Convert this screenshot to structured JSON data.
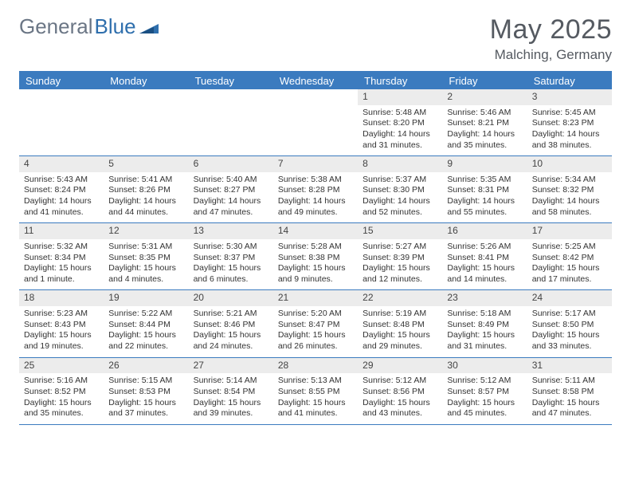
{
  "logo": {
    "text1": "General",
    "text2": "Blue"
  },
  "title": "May 2025",
  "location": "Malching, Germany",
  "colors": {
    "header_bg": "#3b7bbf",
    "header_text": "#ffffff",
    "daynum_bg": "#ececec",
    "border": "#3b7bbf",
    "logo_gray": "#6b7685",
    "logo_blue": "#2f6fad",
    "title_color": "#555a61"
  },
  "day_names": [
    "Sunday",
    "Monday",
    "Tuesday",
    "Wednesday",
    "Thursday",
    "Friday",
    "Saturday"
  ],
  "weeks": [
    [
      null,
      null,
      null,
      null,
      {
        "n": "1",
        "sr": "Sunrise: 5:48 AM",
        "ss": "Sunset: 8:20 PM",
        "d1": "Daylight: 14 hours",
        "d2": "and 31 minutes."
      },
      {
        "n": "2",
        "sr": "Sunrise: 5:46 AM",
        "ss": "Sunset: 8:21 PM",
        "d1": "Daylight: 14 hours",
        "d2": "and 35 minutes."
      },
      {
        "n": "3",
        "sr": "Sunrise: 5:45 AM",
        "ss": "Sunset: 8:23 PM",
        "d1": "Daylight: 14 hours",
        "d2": "and 38 minutes."
      }
    ],
    [
      {
        "n": "4",
        "sr": "Sunrise: 5:43 AM",
        "ss": "Sunset: 8:24 PM",
        "d1": "Daylight: 14 hours",
        "d2": "and 41 minutes."
      },
      {
        "n": "5",
        "sr": "Sunrise: 5:41 AM",
        "ss": "Sunset: 8:26 PM",
        "d1": "Daylight: 14 hours",
        "d2": "and 44 minutes."
      },
      {
        "n": "6",
        "sr": "Sunrise: 5:40 AM",
        "ss": "Sunset: 8:27 PM",
        "d1": "Daylight: 14 hours",
        "d2": "and 47 minutes."
      },
      {
        "n": "7",
        "sr": "Sunrise: 5:38 AM",
        "ss": "Sunset: 8:28 PM",
        "d1": "Daylight: 14 hours",
        "d2": "and 49 minutes."
      },
      {
        "n": "8",
        "sr": "Sunrise: 5:37 AM",
        "ss": "Sunset: 8:30 PM",
        "d1": "Daylight: 14 hours",
        "d2": "and 52 minutes."
      },
      {
        "n": "9",
        "sr": "Sunrise: 5:35 AM",
        "ss": "Sunset: 8:31 PM",
        "d1": "Daylight: 14 hours",
        "d2": "and 55 minutes."
      },
      {
        "n": "10",
        "sr": "Sunrise: 5:34 AM",
        "ss": "Sunset: 8:32 PM",
        "d1": "Daylight: 14 hours",
        "d2": "and 58 minutes."
      }
    ],
    [
      {
        "n": "11",
        "sr": "Sunrise: 5:32 AM",
        "ss": "Sunset: 8:34 PM",
        "d1": "Daylight: 15 hours",
        "d2": "and 1 minute."
      },
      {
        "n": "12",
        "sr": "Sunrise: 5:31 AM",
        "ss": "Sunset: 8:35 PM",
        "d1": "Daylight: 15 hours",
        "d2": "and 4 minutes."
      },
      {
        "n": "13",
        "sr": "Sunrise: 5:30 AM",
        "ss": "Sunset: 8:37 PM",
        "d1": "Daylight: 15 hours",
        "d2": "and 6 minutes."
      },
      {
        "n": "14",
        "sr": "Sunrise: 5:28 AM",
        "ss": "Sunset: 8:38 PM",
        "d1": "Daylight: 15 hours",
        "d2": "and 9 minutes."
      },
      {
        "n": "15",
        "sr": "Sunrise: 5:27 AM",
        "ss": "Sunset: 8:39 PM",
        "d1": "Daylight: 15 hours",
        "d2": "and 12 minutes."
      },
      {
        "n": "16",
        "sr": "Sunrise: 5:26 AM",
        "ss": "Sunset: 8:41 PM",
        "d1": "Daylight: 15 hours",
        "d2": "and 14 minutes."
      },
      {
        "n": "17",
        "sr": "Sunrise: 5:25 AM",
        "ss": "Sunset: 8:42 PM",
        "d1": "Daylight: 15 hours",
        "d2": "and 17 minutes."
      }
    ],
    [
      {
        "n": "18",
        "sr": "Sunrise: 5:23 AM",
        "ss": "Sunset: 8:43 PM",
        "d1": "Daylight: 15 hours",
        "d2": "and 19 minutes."
      },
      {
        "n": "19",
        "sr": "Sunrise: 5:22 AM",
        "ss": "Sunset: 8:44 PM",
        "d1": "Daylight: 15 hours",
        "d2": "and 22 minutes."
      },
      {
        "n": "20",
        "sr": "Sunrise: 5:21 AM",
        "ss": "Sunset: 8:46 PM",
        "d1": "Daylight: 15 hours",
        "d2": "and 24 minutes."
      },
      {
        "n": "21",
        "sr": "Sunrise: 5:20 AM",
        "ss": "Sunset: 8:47 PM",
        "d1": "Daylight: 15 hours",
        "d2": "and 26 minutes."
      },
      {
        "n": "22",
        "sr": "Sunrise: 5:19 AM",
        "ss": "Sunset: 8:48 PM",
        "d1": "Daylight: 15 hours",
        "d2": "and 29 minutes."
      },
      {
        "n": "23",
        "sr": "Sunrise: 5:18 AM",
        "ss": "Sunset: 8:49 PM",
        "d1": "Daylight: 15 hours",
        "d2": "and 31 minutes."
      },
      {
        "n": "24",
        "sr": "Sunrise: 5:17 AM",
        "ss": "Sunset: 8:50 PM",
        "d1": "Daylight: 15 hours",
        "d2": "and 33 minutes."
      }
    ],
    [
      {
        "n": "25",
        "sr": "Sunrise: 5:16 AM",
        "ss": "Sunset: 8:52 PM",
        "d1": "Daylight: 15 hours",
        "d2": "and 35 minutes."
      },
      {
        "n": "26",
        "sr": "Sunrise: 5:15 AM",
        "ss": "Sunset: 8:53 PM",
        "d1": "Daylight: 15 hours",
        "d2": "and 37 minutes."
      },
      {
        "n": "27",
        "sr": "Sunrise: 5:14 AM",
        "ss": "Sunset: 8:54 PM",
        "d1": "Daylight: 15 hours",
        "d2": "and 39 minutes."
      },
      {
        "n": "28",
        "sr": "Sunrise: 5:13 AM",
        "ss": "Sunset: 8:55 PM",
        "d1": "Daylight: 15 hours",
        "d2": "and 41 minutes."
      },
      {
        "n": "29",
        "sr": "Sunrise: 5:12 AM",
        "ss": "Sunset: 8:56 PM",
        "d1": "Daylight: 15 hours",
        "d2": "and 43 minutes."
      },
      {
        "n": "30",
        "sr": "Sunrise: 5:12 AM",
        "ss": "Sunset: 8:57 PM",
        "d1": "Daylight: 15 hours",
        "d2": "and 45 minutes."
      },
      {
        "n": "31",
        "sr": "Sunrise: 5:11 AM",
        "ss": "Sunset: 8:58 PM",
        "d1": "Daylight: 15 hours",
        "d2": "and 47 minutes."
      }
    ]
  ]
}
